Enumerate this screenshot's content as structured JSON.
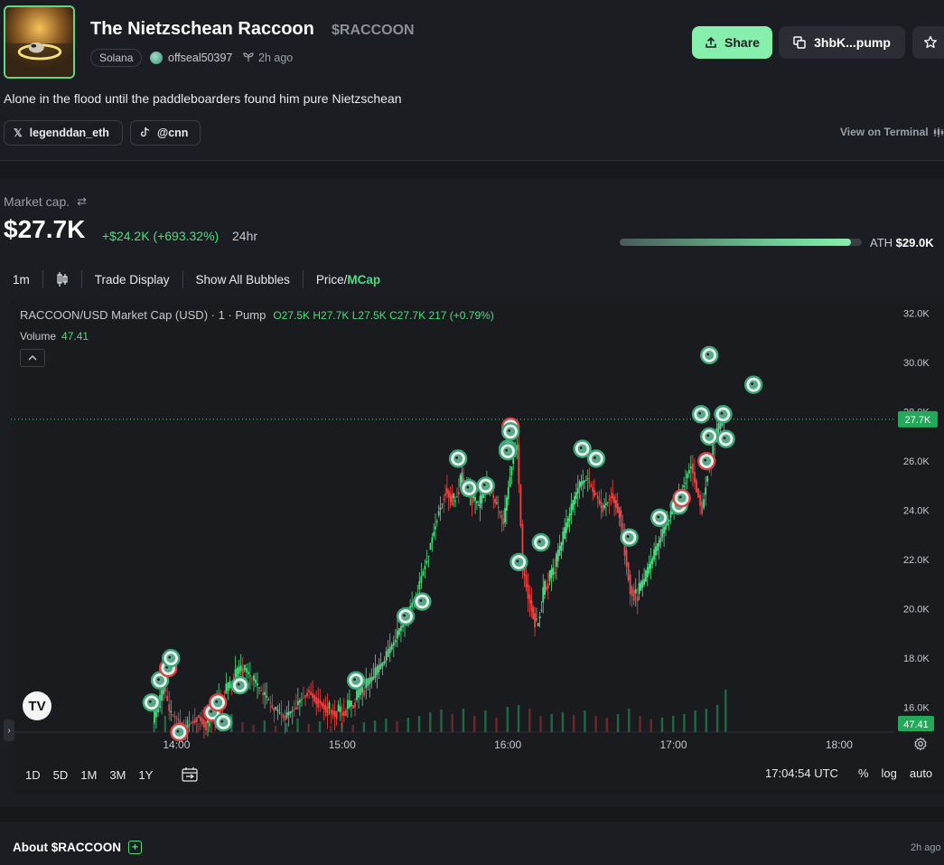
{
  "token": {
    "name": "The Nietzschean Raccoon",
    "ticker": "$RACCOON",
    "chain": "Solana",
    "creator": "offseal50397",
    "age": "2h ago",
    "description": "Alone in the flood until the paddleboarders found him pure Nietzschean"
  },
  "actions": {
    "share": "Share",
    "address": "3hbK...pump"
  },
  "socials": {
    "x": "legenddan_eth",
    "tiktok": "@cnn",
    "terminal": "View on Terminal"
  },
  "market": {
    "label": "Market cap.",
    "value": "$27.7K",
    "change": "+$24.2K (+693.32%)",
    "period": "24hr",
    "ath_label": "ATH",
    "ath_value": "$29.0K",
    "ath_progress": 0.955
  },
  "toolbar": {
    "interval": "1m",
    "trade_display": "Trade Display",
    "show_bubbles": "Show All Bubbles",
    "price": "Price/",
    "mcap": "MCap"
  },
  "chart_header": {
    "symbol": "RACCOON/USD Market Cap (USD) · 1 · Pump",
    "ohlc": "O27.5K H27.7K L27.5K C27.7K 217 (+0.79%)",
    "volume_label": "Volume",
    "volume_value": "47.41",
    "logo": "TV"
  },
  "chart_data": {
    "type": "candlestick",
    "title": "RACCOON/USD Market Cap (USD) · 1 · Pump",
    "interval": "1m",
    "y_ticks": [
      "32.0K",
      "30.0K",
      "28.0K",
      "26.0K",
      "24.0K",
      "22.0K",
      "20.0K",
      "18.0K",
      "16.0K"
    ],
    "y_tick_values": [
      32000,
      30000,
      28000,
      26000,
      24000,
      22000,
      20000,
      18000,
      16000
    ],
    "ylim": [
      15000,
      32500
    ],
    "x_ticks": [
      "14:00",
      "15:00",
      "16:00",
      "17:00",
      "18:00"
    ],
    "x_tick_minutes": [
      0,
      60,
      120,
      180,
      240
    ],
    "xlim_minutes": [
      -60,
      260
    ],
    "current_value": 27700,
    "current_label": "27.7K",
    "volume_current_label": "47.41",
    "ohlc": {
      "open": 27500,
      "high": 27700,
      "low": 27500,
      "close": 27700,
      "change": "217 (+0.79%)"
    },
    "price_path": [
      [
        -8,
        15400
      ],
      [
        -6,
        16000
      ],
      [
        -4,
        16800
      ],
      [
        -2,
        15800
      ],
      [
        0,
        15600
      ],
      [
        4,
        15200
      ],
      [
        8,
        15700
      ],
      [
        12,
        15300
      ],
      [
        16,
        16200
      ],
      [
        20,
        16900
      ],
      [
        24,
        17600
      ],
      [
        28,
        17100
      ],
      [
        32,
        16500
      ],
      [
        36,
        15900
      ],
      [
        40,
        15600
      ],
      [
        44,
        16100
      ],
      [
        48,
        16700
      ],
      [
        52,
        16300
      ],
      [
        56,
        15900
      ],
      [
        60,
        15800
      ],
      [
        64,
        16100
      ],
      [
        68,
        16700
      ],
      [
        72,
        17200
      ],
      [
        76,
        17900
      ],
      [
        80,
        18800
      ],
      [
        84,
        19700
      ],
      [
        88,
        20800
      ],
      [
        92,
        22400
      ],
      [
        95,
        23800
      ],
      [
        98,
        24900
      ],
      [
        101,
        24400
      ],
      [
        104,
        25300
      ],
      [
        107,
        24600
      ],
      [
        110,
        24100
      ],
      [
        113,
        25100
      ],
      [
        116,
        24300
      ],
      [
        119,
        23500
      ],
      [
        122,
        25900
      ],
      [
        124,
        26700
      ],
      [
        126,
        21800
      ],
      [
        128,
        20600
      ],
      [
        131,
        19300
      ],
      [
        134,
        20900
      ],
      [
        137,
        21500
      ],
      [
        140,
        22600
      ],
      [
        143,
        23800
      ],
      [
        146,
        24900
      ],
      [
        149,
        25300
      ],
      [
        152,
        24700
      ],
      [
        155,
        24100
      ],
      [
        158,
        24700
      ],
      [
        161,
        24000
      ],
      [
        163,
        22400
      ],
      [
        165,
        20900
      ],
      [
        167,
        20500
      ],
      [
        170,
        21100
      ],
      [
        173,
        22000
      ],
      [
        176,
        22900
      ],
      [
        179,
        23700
      ],
      [
        182,
        24400
      ],
      [
        185,
        25300
      ],
      [
        187,
        25900
      ],
      [
        189,
        24900
      ],
      [
        191,
        24100
      ],
      [
        193,
        25700
      ],
      [
        195,
        26500
      ],
      [
        197,
        27300
      ],
      [
        199,
        27700
      ]
    ],
    "volume_path": [
      [
        -8,
        12
      ],
      [
        -4,
        18
      ],
      [
        0,
        6
      ],
      [
        4,
        14
      ],
      [
        8,
        10
      ],
      [
        12,
        16
      ],
      [
        16,
        9
      ],
      [
        20,
        20
      ],
      [
        24,
        11
      ],
      [
        28,
        8
      ],
      [
        32,
        13
      ],
      [
        36,
        7
      ],
      [
        40,
        10
      ],
      [
        44,
        15
      ],
      [
        48,
        9
      ],
      [
        52,
        12
      ],
      [
        56,
        7
      ],
      [
        60,
        10
      ],
      [
        64,
        8
      ],
      [
        68,
        11
      ],
      [
        72,
        13
      ],
      [
        76,
        15
      ],
      [
        80,
        12
      ],
      [
        84,
        16
      ],
      [
        88,
        18
      ],
      [
        92,
        22
      ],
      [
        96,
        25
      ],
      [
        100,
        20
      ],
      [
        104,
        26
      ],
      [
        108,
        18
      ],
      [
        112,
        24
      ],
      [
        116,
        16
      ],
      [
        120,
        28
      ],
      [
        124,
        30
      ],
      [
        128,
        26
      ],
      [
        132,
        18
      ],
      [
        136,
        20
      ],
      [
        140,
        22
      ],
      [
        144,
        19
      ],
      [
        148,
        24
      ],
      [
        152,
        18
      ],
      [
        156,
        16
      ],
      [
        160,
        20
      ],
      [
        164,
        26
      ],
      [
        168,
        18
      ],
      [
        172,
        14
      ],
      [
        176,
        16
      ],
      [
        180,
        18
      ],
      [
        184,
        20
      ],
      [
        188,
        24
      ],
      [
        192,
        26
      ],
      [
        196,
        30
      ],
      [
        199,
        47
      ]
    ],
    "trade_bubbles": [
      [
        -6,
        17100,
        "buy"
      ],
      [
        -3,
        17600,
        "sell"
      ],
      [
        -9,
        16200,
        "buy"
      ],
      [
        -2,
        18000,
        "buy"
      ],
      [
        1,
        15000,
        "sell"
      ],
      [
        13,
        15800,
        "sell"
      ],
      [
        15,
        16200,
        "sell"
      ],
      [
        17,
        15400,
        "buy"
      ],
      [
        23,
        16900,
        "buy"
      ],
      [
        65,
        17100,
        "buy"
      ],
      [
        83,
        19700,
        "buy"
      ],
      [
        89,
        20300,
        "buy"
      ],
      [
        102,
        26100,
        "buy"
      ],
      [
        106,
        24900,
        "buy"
      ],
      [
        112,
        25000,
        "buy"
      ],
      [
        120,
        26500,
        "buy"
      ],
      [
        121,
        27400,
        "sell"
      ],
      [
        121,
        27200,
        "buy"
      ],
      [
        120,
        26400,
        "buy"
      ],
      [
        124,
        21900,
        "buy"
      ],
      [
        132,
        22700,
        "buy"
      ],
      [
        147,
        26500,
        "buy"
      ],
      [
        152,
        26100,
        "buy"
      ],
      [
        164,
        22900,
        "buy"
      ],
      [
        175,
        23700,
        "buy"
      ],
      [
        182,
        24200,
        "buy"
      ],
      [
        183,
        24500,
        "sell"
      ],
      [
        190,
        27900,
        "buy"
      ],
      [
        193,
        27000,
        "buy"
      ],
      [
        192,
        26000,
        "sell"
      ],
      [
        198,
        27900,
        "buy"
      ],
      [
        199,
        26900,
        "buy"
      ],
      [
        193,
        30300,
        "buy"
      ],
      [
        209,
        29100,
        "buy"
      ]
    ]
  },
  "range": {
    "buttons": [
      "1D",
      "5D",
      "1M",
      "3M",
      "1Y"
    ],
    "time": "17:04:54 UTC",
    "percent": "%",
    "log": "log",
    "auto": "auto"
  },
  "about": {
    "title": "About $RACCOON",
    "age": "2h ago"
  },
  "colors": {
    "accent": "#86efac",
    "up": "#4ade80",
    "down": "#ef4444",
    "bg": "#1b1d22"
  }
}
